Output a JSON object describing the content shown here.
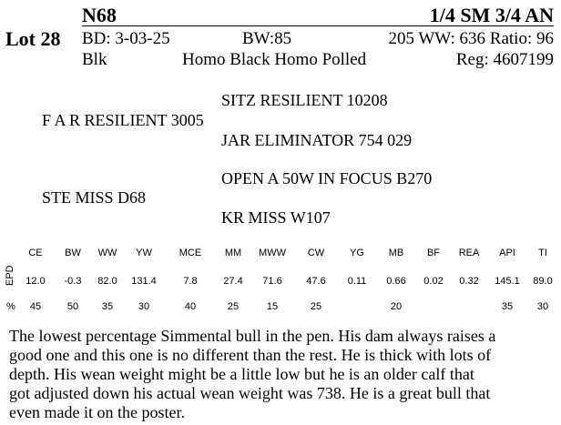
{
  "header": {
    "lot": "Lot 28",
    "tag": "N68",
    "breed": "1/4 SM 3/4 AN"
  },
  "details": {
    "bd": "BD: 3-03-25",
    "bw": "BW:85",
    "ww": "205 WW: 636 Ratio: 96",
    "color": "Blk",
    "traits": "Homo Black Homo Polled",
    "reg": "Reg: 4607199"
  },
  "pedigree": {
    "sire": "F A R RESILIENT 3005",
    "sire_sire": "SITZ RESILIENT 10208",
    "sire_dam": "JAR ELIMINATOR 754 029",
    "dam": "STE MISS D68",
    "dam_sire": "OPEN A 50W IN FOCUS B270",
    "dam_dam": "KR MISS W107"
  },
  "epd": {
    "row_label_epd": "EPD",
    "row_label_pct": "%",
    "headers": [
      "CE",
      "BW",
      "WW",
      "YW",
      "MCE",
      "MM",
      "MWW",
      "CW",
      "YG",
      "MB",
      "BF",
      "REA",
      "API",
      "TI"
    ],
    "values": [
      "12.0",
      "-0.3",
      "82.0",
      "131.4",
      "7.8",
      "27.4",
      "71.6",
      "47.6",
      "0.11",
      "0.66",
      "0.02",
      "0.32",
      "145.1",
      "89.0"
    ],
    "percents": [
      "45",
      "50",
      "35",
      "30",
      "40",
      "25",
      "15",
      "25",
      "",
      "20",
      "",
      "",
      "35",
      "30"
    ]
  },
  "description": [
    "The lowest percentage Simmental bull in the pen.  His dam always raises a",
    "good one and this one is no different than the rest.  He is thick with lots of",
    "depth.  His wean weight might be a little low but he is an older calf that",
    "got adjusted down his actual wean weight was 738.  He is a great bull that",
    "even made it on the poster."
  ]
}
